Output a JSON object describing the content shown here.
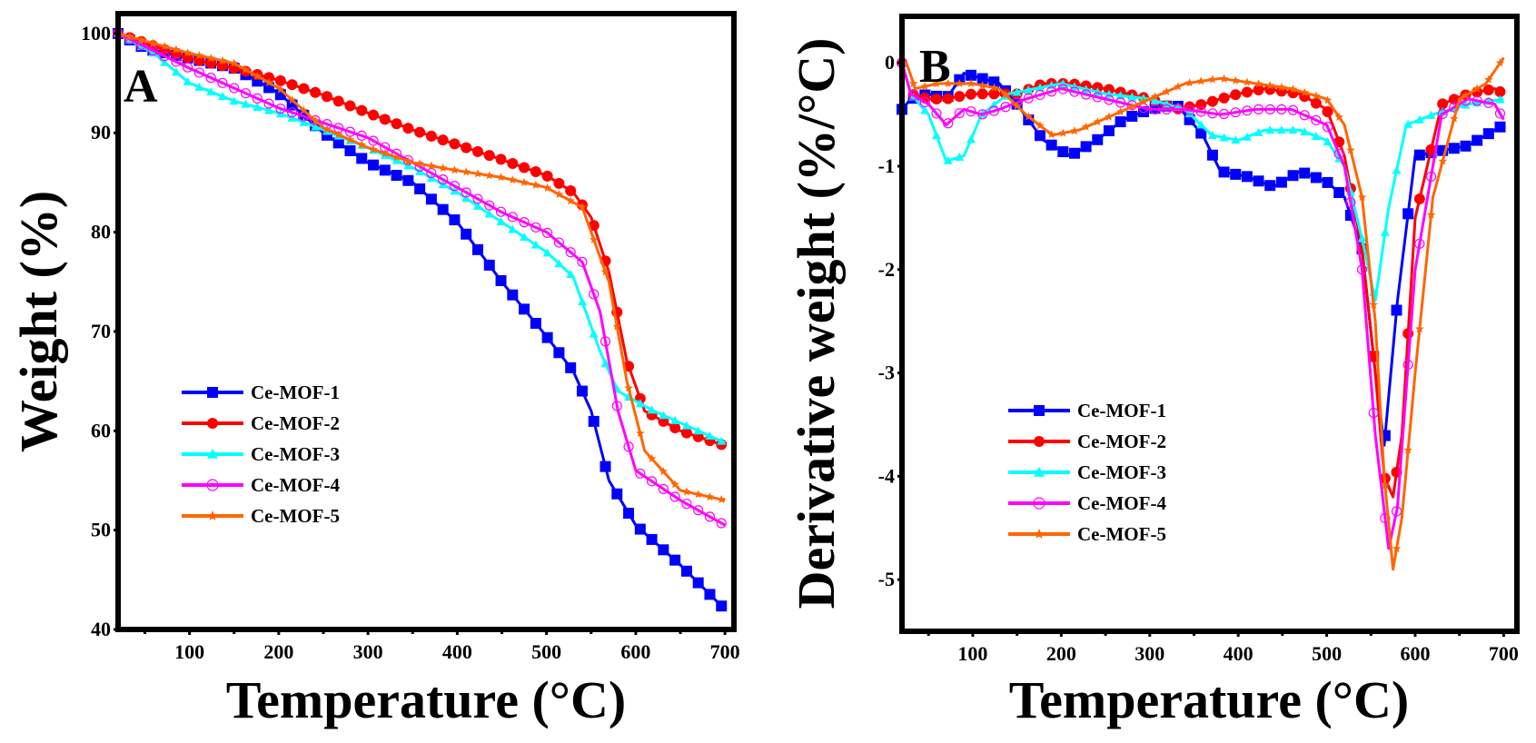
{
  "chart_data": [
    {
      "type": "line",
      "panel_label": "A",
      "title": "",
      "xlabel": "Temperature (°C)",
      "ylabel": "Weight (%)",
      "xlim": [
        20,
        710
      ],
      "ylim": [
        40,
        102
      ],
      "xticks": [
        100,
        200,
        300,
        400,
        500,
        600,
        700
      ],
      "yticks": [
        40,
        50,
        60,
        70,
        80,
        90,
        100
      ],
      "grid": false,
      "legend_position": "lower-left",
      "series": [
        {
          "name": "Ce-MOF-1",
          "color": "#0000ff",
          "marker": "square",
          "x": [
            20,
            50,
            100,
            150,
            200,
            250,
            300,
            350,
            400,
            450,
            500,
            530,
            550,
            570,
            600,
            650,
            700
          ],
          "y": [
            100,
            98.5,
            97.5,
            96.5,
            94,
            90,
            87,
            85,
            81,
            75,
            69.5,
            66,
            62,
            55,
            50.5,
            46.5,
            42
          ]
        },
        {
          "name": "Ce-MOF-2",
          "color": "#ff0000",
          "marker": "circle",
          "x": [
            20,
            100,
            150,
            200,
            250,
            300,
            350,
            400,
            450,
            500,
            530,
            550,
            570,
            590,
            610,
            650,
            700
          ],
          "y": [
            100,
            97.5,
            96.5,
            95.3,
            93.8,
            92,
            90.3,
            88.8,
            87.3,
            85.7,
            84,
            81.5,
            76,
            67,
            62,
            60,
            58.5
          ]
        },
        {
          "name": "Ce-MOF-3",
          "color": "#00ffff",
          "marker": "triangle",
          "x": [
            20,
            60,
            100,
            150,
            200,
            250,
            300,
            350,
            400,
            450,
            500,
            530,
            560,
            580,
            620,
            700
          ],
          "y": [
            100,
            98,
            95,
            93.2,
            92,
            90.3,
            88.5,
            86.5,
            84,
            81,
            78,
            75.5,
            68,
            64,
            62,
            58.8
          ]
        },
        {
          "name": "Ce-MOF-4",
          "color": "#ff00ff",
          "marker": "open-circle",
          "x": [
            20,
            100,
            150,
            200,
            250,
            300,
            350,
            400,
            450,
            500,
            540,
            560,
            580,
            600,
            650,
            700
          ],
          "y": [
            100,
            96.5,
            94.5,
            92.5,
            91,
            89.5,
            87,
            84.5,
            82,
            80,
            77,
            72,
            62,
            56,
            53,
            50.5
          ]
        },
        {
          "name": "Ce-MOF-5",
          "color": "#ff6600",
          "marker": "star",
          "x": [
            20,
            100,
            150,
            200,
            250,
            300,
            350,
            400,
            450,
            500,
            540,
            570,
            590,
            610,
            650,
            700
          ],
          "y": [
            100,
            98,
            97,
            94.5,
            90.5,
            88.5,
            87,
            86.2,
            85.5,
            84.5,
            82.5,
            75,
            65,
            58,
            54,
            53
          ]
        }
      ]
    },
    {
      "type": "line",
      "panel_label": "B",
      "title": "",
      "xlabel": "Temperature (°C)",
      "ylabel": "Derivative weight (%/°C)",
      "xlim": [
        20,
        715
      ],
      "ylim": [
        -5.5,
        0.45
      ],
      "xticks": [
        100,
        200,
        300,
        400,
        500,
        600,
        700
      ],
      "yticks": [
        0,
        -1,
        -2,
        -3,
        -4,
        -5
      ],
      "grid": false,
      "legend_position": "lower-left",
      "series": [
        {
          "name": "Ce-MOF-1",
          "color": "#0000ff",
          "marker": "square",
          "x": [
            20,
            30,
            50,
            70,
            90,
            110,
            130,
            150,
            180,
            210,
            240,
            270,
            300,
            330,
            360,
            380,
            410,
            440,
            470,
            500,
            520,
            540,
            555,
            565,
            580,
            600,
            630,
            660,
            690,
            700
          ],
          "y": [
            -0.45,
            -0.35,
            -0.3,
            -0.35,
            -0.1,
            -0.15,
            -0.2,
            -0.4,
            -0.75,
            -0.9,
            -0.75,
            -0.55,
            -0.45,
            -0.4,
            -0.7,
            -1.05,
            -1.1,
            -1.2,
            -1.05,
            -1.15,
            -1.3,
            -1.8,
            -3.0,
            -3.7,
            -2.3,
            -0.9,
            -0.85,
            -0.8,
            -0.65,
            -0.6
          ]
        },
        {
          "name": "Ce-MOF-2",
          "color": "#ff0000",
          "marker": "circle",
          "x": [
            20,
            30,
            50,
            70,
            100,
            150,
            180,
            210,
            250,
            300,
            330,
            360,
            400,
            430,
            470,
            500,
            520,
            540,
            555,
            565,
            575,
            585,
            600,
            630,
            660,
            690,
            700
          ],
          "y": [
            0,
            -0.3,
            -0.35,
            -0.35,
            -0.3,
            -0.3,
            -0.2,
            -0.2,
            -0.25,
            -0.35,
            -0.45,
            -0.4,
            -0.3,
            -0.25,
            -0.3,
            -0.45,
            -0.9,
            -1.8,
            -3.0,
            -4.0,
            -4.2,
            -3.6,
            -1.5,
            -0.4,
            -0.3,
            -0.25,
            -0.3
          ]
        },
        {
          "name": "Ce-MOF-3",
          "color": "#00ffff",
          "marker": "triangle",
          "x": [
            20,
            30,
            50,
            70,
            90,
            110,
            140,
            170,
            200,
            250,
            300,
            340,
            370,
            400,
            430,
            470,
            500,
            520,
            540,
            555,
            570,
            590,
            620,
            660,
            700
          ],
          "y": [
            0,
            -0.3,
            -0.5,
            -0.95,
            -0.9,
            -0.5,
            -0.3,
            -0.25,
            -0.2,
            -0.3,
            -0.35,
            -0.45,
            -0.7,
            -0.75,
            -0.65,
            -0.65,
            -0.75,
            -1.0,
            -1.7,
            -2.3,
            -1.4,
            -0.6,
            -0.5,
            -0.4,
            -0.35
          ]
        },
        {
          "name": "Ce-MOF-4",
          "color": "#ff00ff",
          "marker": "open-circle",
          "x": [
            20,
            30,
            50,
            70,
            90,
            110,
            130,
            160,
            200,
            250,
            300,
            340,
            380,
            420,
            460,
            500,
            520,
            540,
            555,
            570,
            580,
            600,
            630,
            660,
            690,
            700
          ],
          "y": [
            0,
            -0.3,
            -0.4,
            -0.6,
            -0.45,
            -0.5,
            -0.45,
            -0.35,
            -0.25,
            -0.35,
            -0.45,
            -0.45,
            -0.5,
            -0.45,
            -0.45,
            -0.6,
            -1.0,
            -2.0,
            -3.6,
            -4.7,
            -4.3,
            -2.0,
            -0.5,
            -0.35,
            -0.4,
            -0.55
          ]
        },
        {
          "name": "Ce-MOF-5",
          "color": "#ff6600",
          "marker": "star",
          "x": [
            20,
            25,
            35,
            60,
            100,
            130,
            160,
            190,
            220,
            260,
            300,
            340,
            380,
            420,
            460,
            500,
            520,
            540,
            555,
            565,
            575,
            585,
            600,
            620,
            650,
            680,
            700
          ],
          "y": [
            0,
            0.0,
            -0.25,
            -0.2,
            -0.2,
            -0.25,
            -0.5,
            -0.7,
            -0.65,
            -0.5,
            -0.35,
            -0.2,
            -0.15,
            -0.2,
            -0.25,
            -0.35,
            -0.6,
            -1.3,
            -2.5,
            -4.0,
            -4.9,
            -4.4,
            -3.0,
            -1.3,
            -0.35,
            -0.2,
            0.05
          ]
        }
      ]
    }
  ]
}
